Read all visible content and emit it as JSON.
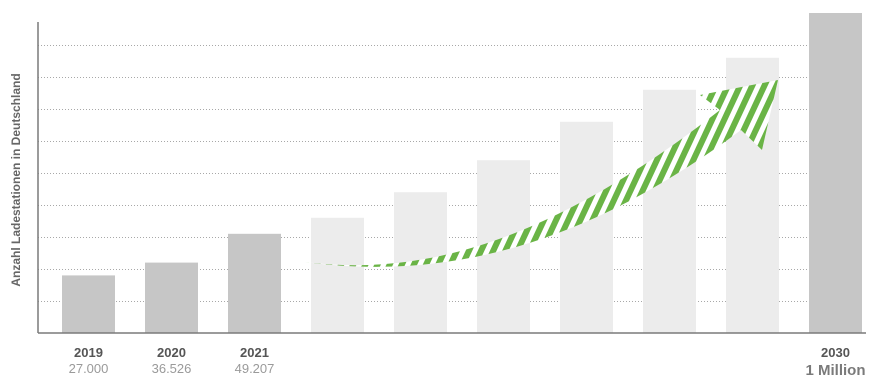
{
  "chart_data": {
    "type": "bar",
    "ylabel": "Anzahl Ladestationen in Deutschland",
    "categories": [
      "2019",
      "2020",
      "2021",
      "",
      "",
      "",
      "",
      "",
      "",
      "2030"
    ],
    "values": [
      18,
      22,
      31,
      36,
      44,
      54,
      66,
      76,
      86,
      100
    ],
    "value_labels": [
      "27.000",
      "36.526",
      "49.207",
      "",
      "",
      "",
      "",
      "",
      "",
      "1 Million"
    ],
    "bar_styles": [
      "actual",
      "actual",
      "actual",
      "projected",
      "projected",
      "projected",
      "projected",
      "projected",
      "projected",
      "target"
    ],
    "ylim": [
      0,
      100
    ],
    "grid": true,
    "colors": {
      "actual": "#c6c6c6",
      "projected": "#ececec",
      "target": "#c6c6c6",
      "arrow": "#6ab446",
      "grid": "#a8a8a8",
      "axis": "#7a7a7a"
    },
    "annotation": "growth-arrow"
  }
}
